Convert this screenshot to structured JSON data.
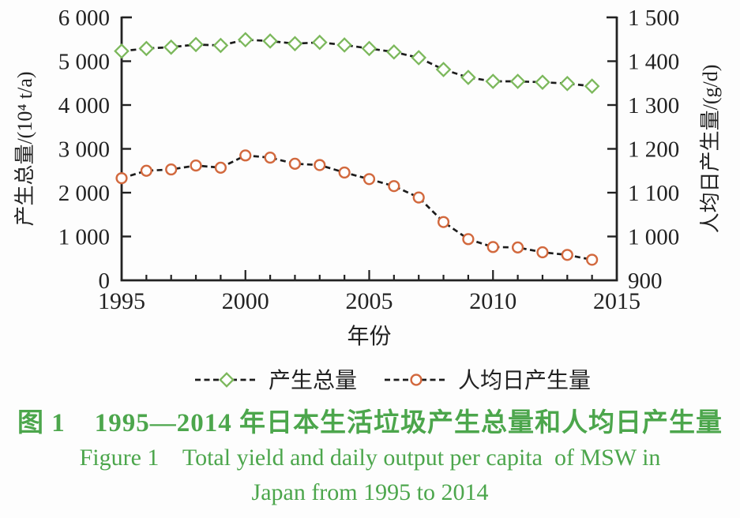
{
  "figure": {
    "caption_zh": "图 1    1995—2014 年日本生活垃圾产生总量和人均日产生量",
    "caption_en_line1": "Figure 1    Total yield and daily output per capita  of MSW in",
    "caption_en_line2": "Japan from 1995 to 2014",
    "caption_color": "#4ca64c"
  },
  "chart_data": {
    "type": "line",
    "x": [
      1995,
      1996,
      1997,
      1998,
      1999,
      2000,
      2001,
      2002,
      2003,
      2004,
      2005,
      2006,
      2007,
      2008,
      2009,
      2010,
      2011,
      2012,
      2013,
      2014
    ],
    "series": [
      {
        "name": "产生总量",
        "axis": "left",
        "marker": "diamond",
        "marker_color": "#7cb85c",
        "line_color": "#1c1c1c",
        "line_style": "dashed",
        "values": [
          5230,
          5290,
          5320,
          5380,
          5360,
          5490,
          5460,
          5400,
          5430,
          5370,
          5290,
          5210,
          5080,
          4810,
          4630,
          4540,
          4540,
          4520,
          4490,
          4430
        ]
      },
      {
        "name": "人均日产生量",
        "axis": "right",
        "marker": "circle",
        "marker_color": "#d2693e",
        "line_color": "#1c1c1c",
        "line_style": "dashed",
        "values": [
          1133,
          1150,
          1153,
          1162,
          1157,
          1185,
          1180,
          1166,
          1163,
          1146,
          1131,
          1115,
          1089,
          1033,
          994,
          976,
          975,
          964,
          958,
          947
        ]
      }
    ],
    "xlabel": "年份",
    "xlim": [
      1995,
      2015
    ],
    "x_major_ticks": [
      1995,
      2000,
      2005,
      2010,
      2015
    ],
    "x_major_tick_labels": [
      "1995",
      "2000",
      "2005",
      "2010",
      "2015"
    ],
    "x_minor_tick_step": 1,
    "left_axis": {
      "label": "产生总量/(10⁴ t/a)",
      "lim": [
        0,
        6000
      ],
      "tick_values": [
        6000,
        5000,
        4000,
        3000,
        2000,
        1000,
        0
      ],
      "tick_labels": [
        "6 000",
        "5 000",
        "4 000",
        "3 000",
        "2 000",
        "1 000",
        "0"
      ]
    },
    "right_axis": {
      "label": "人均日产生量/(g/d)",
      "lim": [
        900,
        1500
      ],
      "tick_values": [
        1500,
        1400,
        1300,
        1200,
        1100,
        1000,
        900
      ],
      "tick_labels": [
        "1 500",
        "1 400",
        "1 300",
        "1 200",
        "1 100",
        "1 000",
        "900"
      ]
    },
    "legend": {
      "position": "bottom-center",
      "entries": [
        "产生总量",
        "人均日产生量"
      ]
    },
    "grid": false,
    "axis_color": "#222222"
  }
}
